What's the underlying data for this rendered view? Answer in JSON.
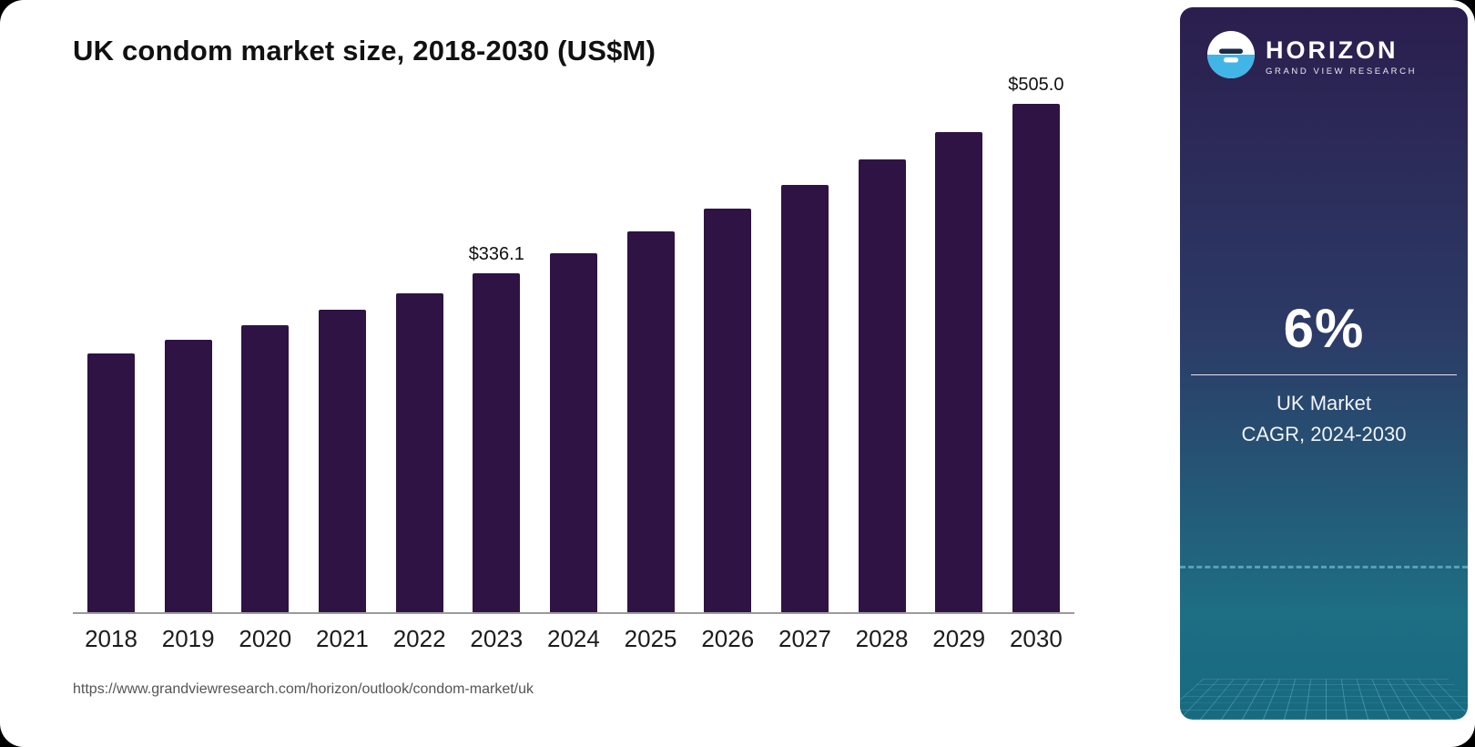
{
  "chart_data": {
    "type": "bar",
    "title": "UK condom market size, 2018-2030 (US$M)",
    "categories": [
      "2018",
      "2019",
      "2020",
      "2021",
      "2022",
      "2023",
      "2024",
      "2025",
      "2026",
      "2027",
      "2028",
      "2029",
      "2030"
    ],
    "values": [
      257.0,
      270.8,
      284.6,
      300.0,
      316.3,
      336.1,
      356.3,
      377.7,
      400.3,
      424.4,
      449.8,
      476.6,
      505.0
    ],
    "annotations": [
      {
        "category": "2023",
        "text": "$336.1"
      },
      {
        "category": "2030",
        "text": "$505.0"
      }
    ],
    "xlabel": "",
    "ylabel": "",
    "ylim": [
      0,
      510
    ],
    "grid": false,
    "legend": false,
    "bar_color": "#2e1344"
  },
  "source_url": "https://www.grandviewresearch.com/horizon/outlook/condom-market/uk",
  "sidebar": {
    "brand": "HORIZON",
    "brand_sub": "GRAND VIEW RESEARCH",
    "stat_value": "6%",
    "stat_line1": "UK Market",
    "stat_line2": "CAGR, 2024-2030",
    "colors": {
      "panel_top": "#2b1e4e",
      "panel_bottom": "#176a80",
      "logo_blue": "#41b6e6",
      "logo_navy": "#1b2a4a"
    }
  }
}
